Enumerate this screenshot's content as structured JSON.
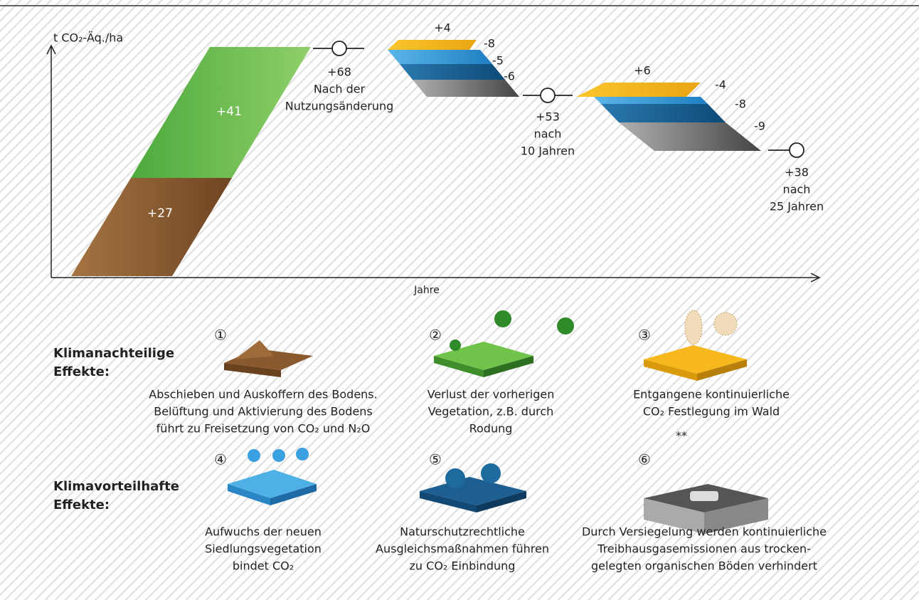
{
  "diagram": {
    "y_axis_label": "t CO₂-Äq./ha",
    "x_axis_label": "Jahre",
    "bars": {
      "soil": "+27",
      "vegetation": "+41"
    },
    "stage1": {
      "gain": "+4",
      "losses": [
        "-8",
        "-5",
        "-6"
      ]
    },
    "stage2": {
      "gain": "+6",
      "losses": [
        "-4",
        "-8",
        "-9"
      ]
    },
    "milestones": [
      {
        "value": "+68",
        "lines": [
          "Nach der",
          "Nutzungsänderung"
        ]
      },
      {
        "value": "+53",
        "lines": [
          "nach",
          "10 Jahren"
        ]
      },
      {
        "value": "+38",
        "lines": [
          "nach",
          "25 Jahren"
        ]
      }
    ]
  },
  "effects": {
    "negative": {
      "heading": [
        "Klimanachteilige",
        "Effekte:"
      ],
      "items": [
        {
          "number": "①",
          "lines": [
            "Abschieben und Auskoffern des Bodens.",
            "Belüftung und Aktivierung des Bodens",
            "führt zu Freisetzung von CO₂ und N₂O"
          ]
        },
        {
          "number": "②",
          "lines": [
            "Verlust der vorherigen",
            "Vegetation, z.B. durch",
            "Rodung"
          ]
        },
        {
          "number": "③",
          "lines": [
            "Entgangene kontinuierliche",
            "CO₂ Festlegung im Wald"
          ]
        }
      ]
    },
    "note": "**",
    "positive": {
      "heading": [
        "Klimavorteilhafte",
        "Effekte:"
      ],
      "items": [
        {
          "number": "④",
          "lines": [
            "Aufwuchs der neuen",
            "Siedlungsvegetation",
            "bindet CO₂"
          ]
        },
        {
          "number": "⑤",
          "lines": [
            "Naturschutzrechtliche",
            "Ausgleichsmaßnahmen führen",
            "zu CO₂ Einbindung"
          ]
        },
        {
          "number": "⑥",
          "lines": [
            "Durch Versiegelung werden kontinuierliche",
            "Treibhausgasemissionen aus trocken-",
            "gelegten organischen Böden verhindert"
          ]
        }
      ]
    }
  }
}
